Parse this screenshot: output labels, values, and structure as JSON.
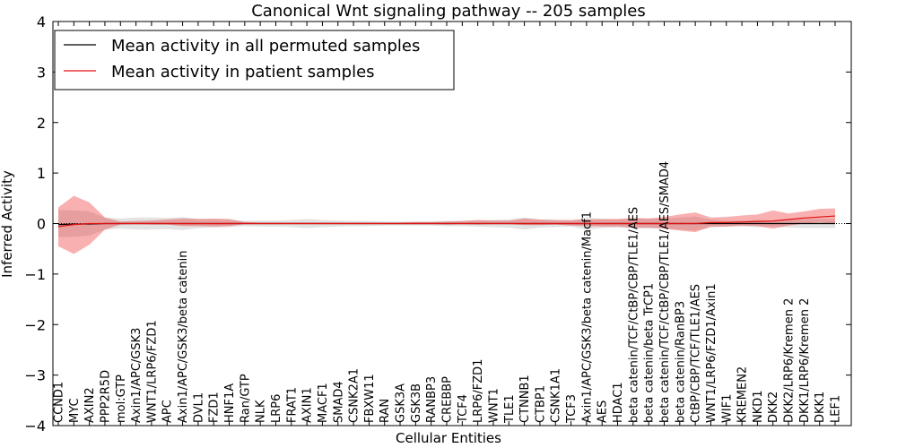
{
  "chart_data": {
    "type": "line",
    "title": "Canonical Wnt signaling pathway -- 205 samples",
    "xlabel": "Cellular Entities",
    "ylabel": "Inferred Activity",
    "ylim": [
      -4,
      4
    ],
    "yticks": [
      "4",
      "3",
      "2",
      "1",
      "0",
      "−1",
      "−2",
      "−3",
      "−4"
    ],
    "ytick_values": [
      4,
      3,
      2,
      1,
      0,
      -1,
      -2,
      -3,
      -4
    ],
    "legend_location": "upper-left",
    "categories": [
      "CCND1",
      "MYC",
      "AXIN2",
      "PPP2R5D",
      "mol:GTP",
      "Axin1/APC/GSK3",
      "WNT1/LRP6/FZD1",
      "APC",
      "Axin1/APC/GSK3/beta catenin",
      "DVL1",
      "FZD1",
      "HNF1A",
      "Ran/GTP",
      "NLK",
      "LRP6",
      "FRAT1",
      "AXIN1",
      "MACF1",
      "SMAD4",
      "CSNK2A1",
      "FBXW11",
      "RAN",
      "GSK3A",
      "GSK3B",
      "RANBP3",
      "CREBBP",
      "TCF4",
      "LRP6/FZD1",
      "WNT1",
      "TLE1",
      "CTNNB1",
      "CTBP1",
      "CSNK1A1",
      "TCF3",
      "Axin1/APC/GSK3/beta catenin/Macf1",
      "AES",
      "HDAC1",
      "beta catenin/TCF/CtBP/CBP/TLE1/AES",
      "beta catenin/beta TrCP1",
      "beta catenin/TCF/CtBP/CBP/TLE1/AES/SMAD4",
      "beta catenin/RanBP3",
      "CtBP/CBP/TCF/TLE1/AES",
      "WNT1/LRP6/FZD1/Axin1",
      "WIF1",
      "KREMEN2",
      "NKD1",
      "DKK2",
      "DKK2/LRP6/Kremen 2",
      "DKK1/LRP6/Kremen 2",
      "DKK1",
      "LEF1"
    ],
    "series": [
      {
        "name": "Mean activity in all permuted samples",
        "color": "#000000",
        "values": [
          -0.02,
          -0.01,
          -0.01,
          0.0,
          0.0,
          0.0,
          0.0,
          0.0,
          0.0,
          0.0,
          0.0,
          0.0,
          0.0,
          0.0,
          0.0,
          0.0,
          0.0,
          0.0,
          0.0,
          0.0,
          0.0,
          0.0,
          0.0,
          0.0,
          0.0,
          0.0,
          0.0,
          0.0,
          0.0,
          0.0,
          0.0,
          0.0,
          0.0,
          0.0,
          0.0,
          0.0,
          0.0,
          0.0,
          0.0,
          0.0,
          0.0,
          0.0,
          0.0,
          0.0,
          0.0,
          0.0,
          0.0,
          0.0,
          0.0,
          0.0,
          0.0
        ],
        "band_low": [
          -0.27,
          -0.26,
          -0.24,
          -0.12,
          -0.1,
          -0.12,
          -0.12,
          -0.11,
          -0.13,
          -0.09,
          -0.08,
          -0.07,
          -0.05,
          -0.06,
          -0.06,
          -0.07,
          -0.09,
          -0.07,
          -0.06,
          -0.05,
          -0.05,
          -0.04,
          -0.04,
          -0.04,
          -0.04,
          -0.05,
          -0.05,
          -0.06,
          -0.07,
          -0.08,
          -0.12,
          -0.08,
          -0.07,
          -0.06,
          -0.12,
          -0.09,
          -0.08,
          -0.1,
          -0.1,
          -0.1,
          -0.12,
          -0.14,
          -0.08,
          -0.06,
          -0.06,
          -0.07,
          -0.06,
          -0.08,
          -0.09,
          -0.09,
          -0.09
        ],
        "band_high": [
          0.27,
          0.26,
          0.24,
          0.12,
          0.1,
          0.12,
          0.12,
          0.11,
          0.13,
          0.09,
          0.08,
          0.07,
          0.05,
          0.06,
          0.06,
          0.07,
          0.09,
          0.07,
          0.06,
          0.05,
          0.05,
          0.04,
          0.04,
          0.04,
          0.04,
          0.05,
          0.05,
          0.06,
          0.07,
          0.08,
          0.12,
          0.08,
          0.07,
          0.06,
          0.12,
          0.09,
          0.08,
          0.1,
          0.1,
          0.1,
          0.12,
          0.14,
          0.08,
          0.06,
          0.06,
          0.07,
          0.06,
          0.08,
          0.09,
          0.09,
          0.09
        ]
      },
      {
        "name": "Mean activity in patient samples",
        "color": "#e01010",
        "values": [
          -0.06,
          -0.02,
          0.0,
          0.0,
          0.0,
          0.0,
          0.0,
          0.0,
          0.0,
          0.0,
          0.0,
          0.0,
          0.0,
          0.0,
          0.0,
          0.0,
          0.0,
          0.0,
          0.0,
          0.0,
          0.0,
          0.0,
          0.0,
          0.0,
          0.0,
          0.0,
          0.0,
          0.0,
          0.0,
          0.0,
          0.0,
          0.0,
          0.0,
          0.0,
          0.0,
          0.0,
          0.0,
          0.0,
          0.0,
          0.0,
          0.0,
          0.0,
          0.02,
          0.02,
          0.03,
          0.04,
          0.05,
          0.08,
          0.11,
          0.13,
          0.15
        ],
        "band_low": [
          -0.45,
          -0.6,
          -0.42,
          -0.12,
          -0.02,
          -0.01,
          -0.02,
          -0.02,
          -0.05,
          -0.05,
          -0.06,
          -0.05,
          -0.01,
          -0.01,
          -0.01,
          -0.01,
          -0.01,
          -0.01,
          -0.01,
          -0.01,
          -0.01,
          -0.01,
          -0.01,
          -0.01,
          -0.01,
          -0.02,
          -0.01,
          -0.02,
          -0.01,
          -0.01,
          -0.03,
          -0.03,
          -0.02,
          -0.04,
          -0.05,
          -0.06,
          -0.06,
          -0.08,
          -0.08,
          -0.1,
          -0.14,
          -0.17,
          -0.06,
          -0.06,
          -0.04,
          -0.05,
          -0.1,
          -0.04,
          0.0,
          0.02,
          0.0
        ],
        "band_high": [
          0.32,
          0.55,
          0.42,
          0.12,
          0.04,
          0.05,
          0.06,
          0.08,
          0.1,
          0.09,
          0.1,
          0.09,
          0.03,
          0.02,
          0.02,
          0.02,
          0.02,
          0.02,
          0.02,
          0.02,
          0.02,
          0.02,
          0.02,
          0.03,
          0.03,
          0.04,
          0.05,
          0.07,
          0.06,
          0.06,
          0.1,
          0.08,
          0.07,
          0.07,
          0.08,
          0.09,
          0.09,
          0.11,
          0.1,
          0.13,
          0.18,
          0.22,
          0.12,
          0.13,
          0.16,
          0.18,
          0.26,
          0.2,
          0.24,
          0.29,
          0.3
        ]
      }
    ]
  }
}
